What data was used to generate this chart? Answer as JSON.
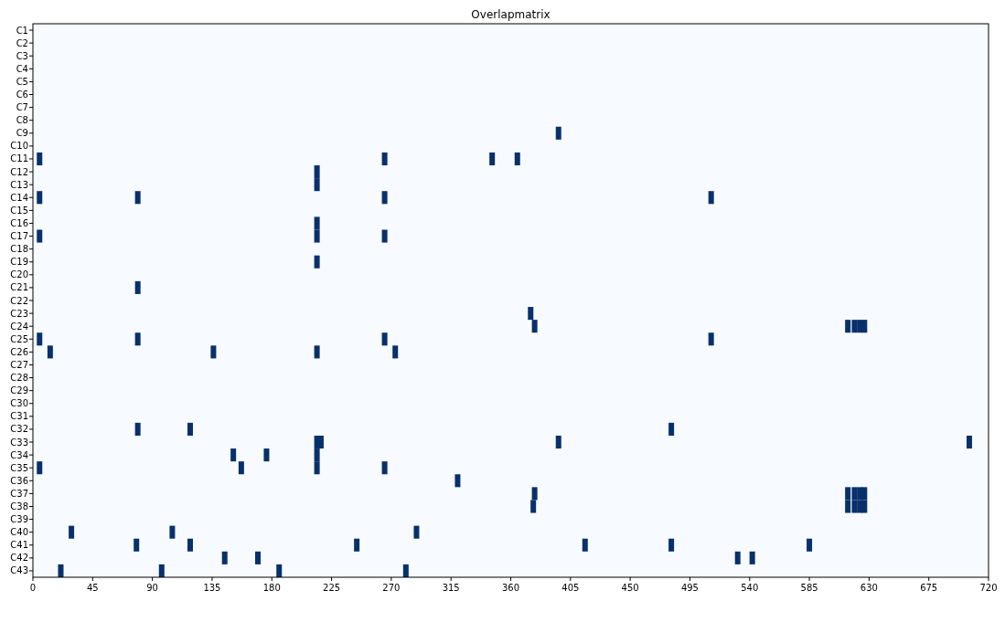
{
  "chart_data": {
    "type": "scatter",
    "title": "Overlapmatrix",
    "marker": "square",
    "orientation": "horizontal",
    "xlim": [
      0,
      720
    ],
    "xticks": [
      0,
      45,
      90,
      135,
      180,
      225,
      270,
      315,
      360,
      405,
      450,
      495,
      540,
      585,
      630,
      675,
      720
    ],
    "categories": [
      "C1",
      "C2",
      "C3",
      "C4",
      "C5",
      "C6",
      "C7",
      "C8",
      "C9",
      "C10",
      "C11",
      "C12",
      "C13",
      "C14",
      "C15",
      "C16",
      "C17",
      "C18",
      "C19",
      "C20",
      "C21",
      "C22",
      "C23",
      "C24",
      "C25",
      "C26",
      "C27",
      "C28",
      "C29",
      "C30",
      "C31",
      "C32",
      "C33",
      "C34",
      "C35",
      "C36",
      "C37",
      "C38",
      "C39",
      "C40",
      "C41",
      "C42",
      "C43"
    ],
    "series": [
      {
        "color": "#08306b",
        "values": [
          null,
          null,
          null,
          null,
          null,
          null,
          null,
          null,
          396,
          null,
          5,
          214,
          214,
          5,
          null,
          214,
          5,
          null,
          214,
          null,
          79,
          null,
          375,
          378,
          5,
          13,
          null,
          null,
          null,
          null,
          null,
          79,
          214,
          151,
          5,
          320,
          378,
          377,
          null,
          29,
          78,
          144.5,
          21
        ]
      },
      {
        "color": "#08306b",
        "values": [
          null,
          null,
          null,
          null,
          null,
          null,
          null,
          null,
          null,
          null,
          265,
          null,
          null,
          79,
          null,
          null,
          214,
          null,
          null,
          null,
          null,
          null,
          null,
          614,
          79,
          136,
          null,
          null,
          null,
          null,
          null,
          118.5,
          217,
          176,
          157,
          null,
          614,
          614,
          null,
          105,
          118.5,
          169.5,
          97
        ]
      },
      {
        "color": "#08306b",
        "values": [
          null,
          null,
          null,
          null,
          null,
          null,
          null,
          null,
          null,
          null,
          346,
          null,
          null,
          265,
          null,
          null,
          265,
          null,
          null,
          null,
          null,
          null,
          null,
          619,
          265,
          214,
          null,
          null,
          null,
          null,
          null,
          481,
          396,
          214,
          214,
          null,
          619,
          619,
          null,
          289,
          244,
          531,
          185.5
        ]
      },
      {
        "color": "#08306b",
        "values": [
          null,
          null,
          null,
          null,
          null,
          null,
          null,
          null,
          null,
          null,
          365,
          null,
          null,
          511,
          null,
          null,
          null,
          null,
          null,
          null,
          null,
          null,
          null,
          623,
          511,
          273,
          null,
          null,
          null,
          null,
          null,
          null,
          705.5,
          null,
          265,
          null,
          623,
          623,
          null,
          null,
          416,
          542,
          281
        ]
      },
      {
        "color": "#08306b",
        "values": [
          null,
          null,
          null,
          null,
          null,
          null,
          null,
          null,
          null,
          null,
          null,
          null,
          null,
          null,
          null,
          null,
          null,
          null,
          null,
          null,
          null,
          null,
          null,
          626.5,
          null,
          null,
          null,
          null,
          null,
          null,
          null,
          null,
          null,
          null,
          null,
          null,
          626.5,
          626.5,
          null,
          null,
          481,
          null,
          null
        ]
      },
      {
        "color": "#08306b",
        "values": [
          null,
          null,
          null,
          null,
          null,
          null,
          null,
          null,
          null,
          null,
          null,
          null,
          null,
          null,
          null,
          null,
          null,
          null,
          null,
          null,
          null,
          null,
          null,
          null,
          null,
          null,
          null,
          null,
          null,
          null,
          null,
          null,
          null,
          null,
          null,
          null,
          null,
          null,
          null,
          null,
          585,
          null,
          null
        ]
      }
    ]
  }
}
